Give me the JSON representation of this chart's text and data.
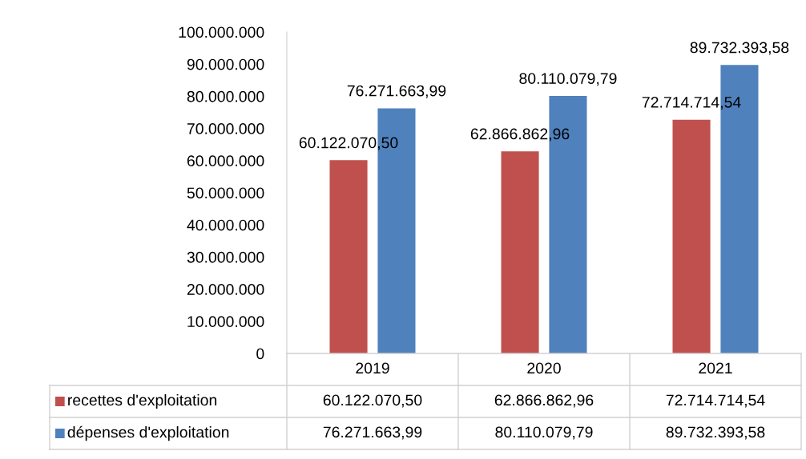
{
  "chart_data": {
    "type": "bar",
    "categories": [
      "2019",
      "2020",
      "2021"
    ],
    "series": [
      {
        "name": "recettes d'exploitation",
        "color": "#c0504d",
        "values": [
          60122070.5,
          62866862.96,
          72714714.54
        ],
        "value_labels": [
          "60.122.070,50",
          "62.866.862,96",
          "72.714.714,54"
        ]
      },
      {
        "name": "dépenses d'exploitation",
        "color": "#4f81bd",
        "values": [
          76271663.99,
          80110079.79,
          89732393.58
        ],
        "value_labels": [
          "76.271.663,99",
          "80.110.079,79",
          "89.732.393,58"
        ]
      }
    ],
    "ylim": [
      0,
      100000000
    ],
    "yticks": [
      0,
      {
        "value": 10000000,
        "label": "10.000.000"
      },
      {
        "value": 20000000,
        "label": "20.000.000"
      },
      {
        "value": 30000000,
        "label": "30.000.000"
      },
      {
        "value": 40000000,
        "label": "40.000.000"
      },
      {
        "value": 50000000,
        "label": "50.000.000"
      },
      {
        "value": 60000000,
        "label": "60.000.000"
      },
      {
        "value": 70000000,
        "label": "70.000.000"
      },
      {
        "value": 80000000,
        "label": "80.000.000"
      },
      {
        "value": 90000000,
        "label": "90.000.000"
      },
      {
        "value": 100000000,
        "label": "100.000.000"
      }
    ],
    "grid": false,
    "legend": "bottom"
  }
}
